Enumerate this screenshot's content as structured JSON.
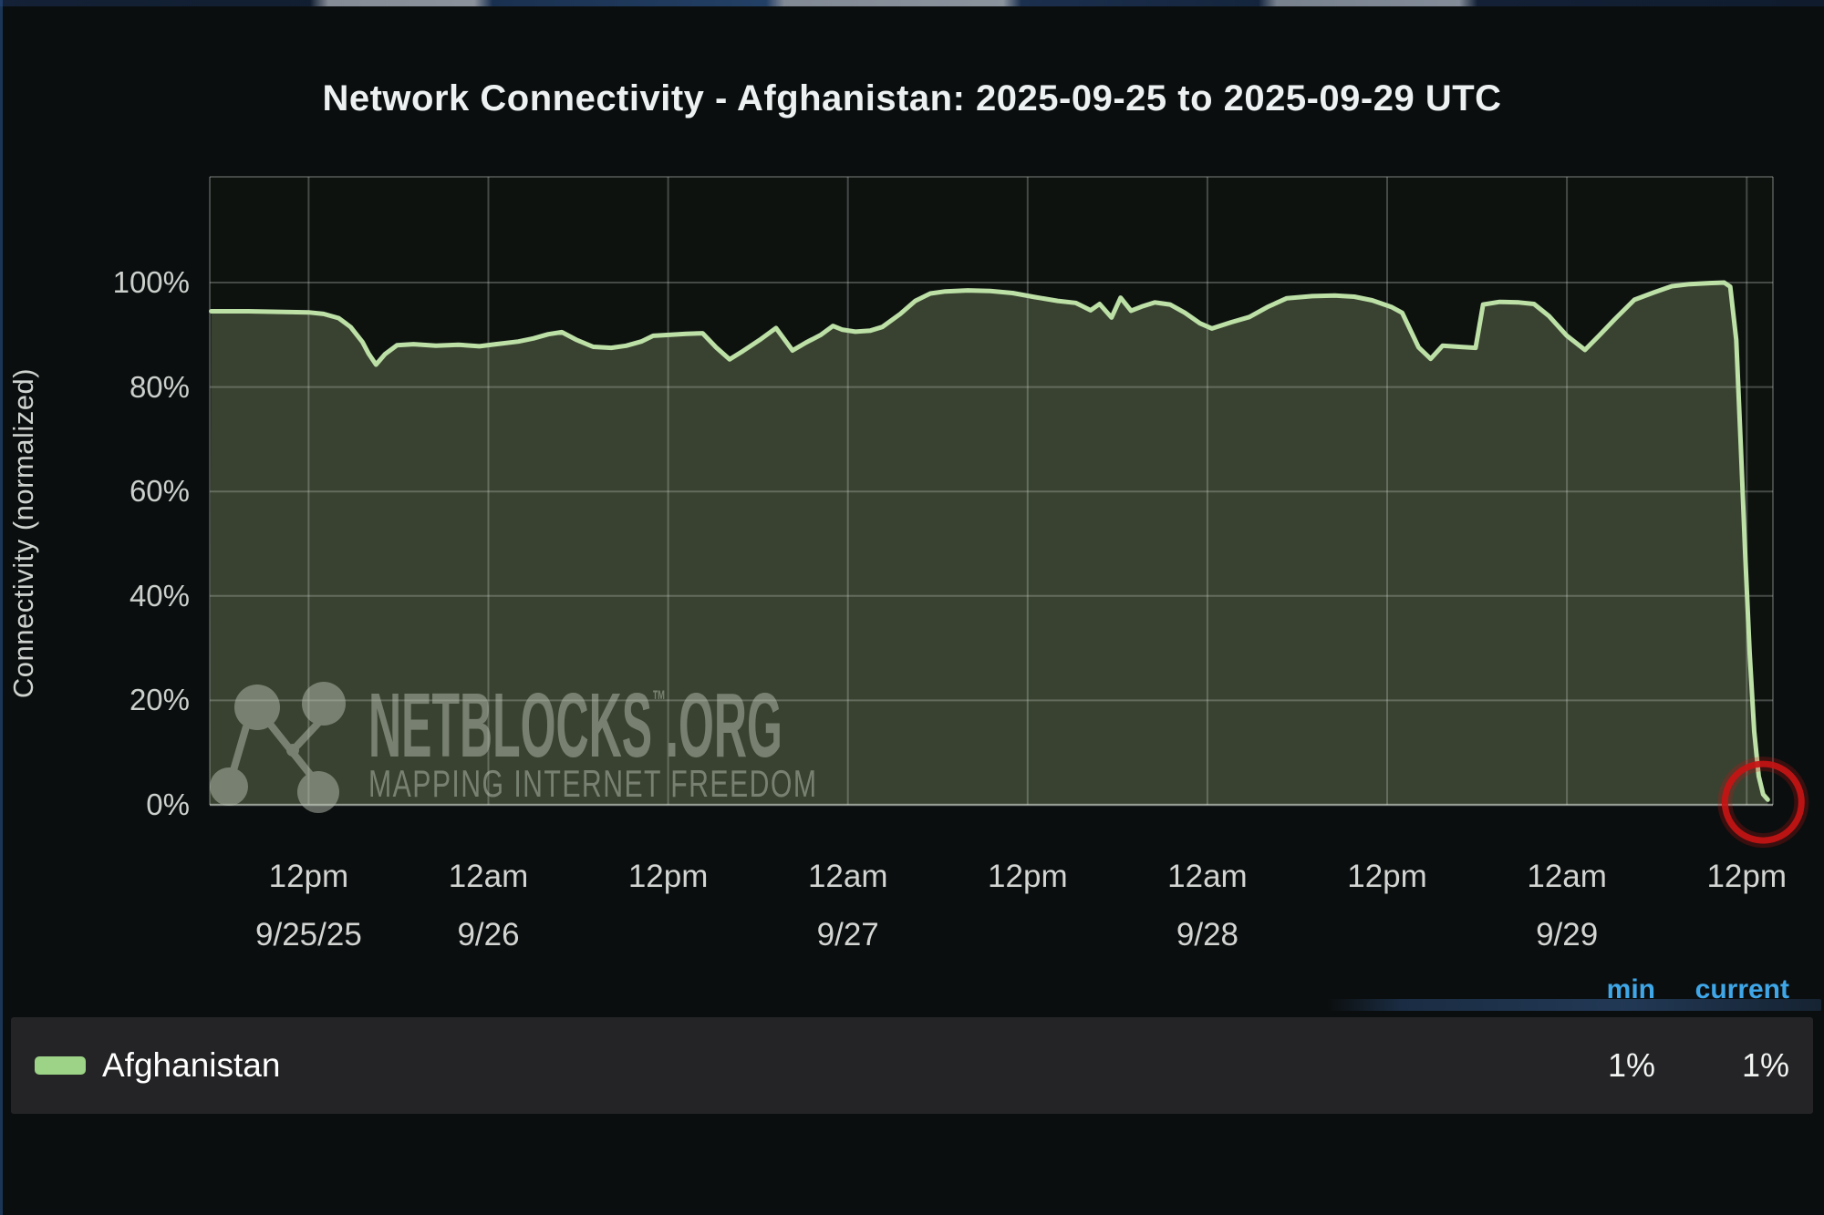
{
  "page": {
    "title": "Network Connectivity - Afghanistan: 2025-09-25 to 2025-09-29 UTC"
  },
  "chart_data": {
    "type": "area",
    "title": "Network Connectivity - Afghanistan: 2025-09-25 to 2025-09-29 UTC",
    "xlabel": "",
    "ylabel": "Connectivity (normalized)",
    "x_unit": "hours since 2025-09-25 00:00 UTC",
    "x_range": [
      5.4,
      109.75
    ],
    "ylim": [
      0,
      120
    ],
    "grid": true,
    "legend_position": "bottom",
    "y_ticks": [
      {
        "v": 0,
        "label": "0%"
      },
      {
        "v": 20,
        "label": "20%"
      },
      {
        "v": 40,
        "label": "40%"
      },
      {
        "v": 60,
        "label": "60%"
      },
      {
        "v": 80,
        "label": "80%"
      },
      {
        "v": 100,
        "label": "100%"
      }
    ],
    "x_ticks": [
      {
        "t": 12,
        "label": "12pm",
        "date": "9/25/25"
      },
      {
        "t": 24,
        "label": "12am",
        "date": "9/26"
      },
      {
        "t": 36,
        "label": "12pm"
      },
      {
        "t": 48,
        "label": "12am",
        "date": "9/27"
      },
      {
        "t": 60,
        "label": "12pm"
      },
      {
        "t": 72,
        "label": "12am",
        "date": "9/28"
      },
      {
        "t": 84,
        "label": "12pm"
      },
      {
        "t": 96,
        "label": "12am",
        "date": "9/29"
      },
      {
        "t": 108,
        "label": "12pm"
      }
    ],
    "series": [
      {
        "name": "Afghanistan",
        "color": "#bce0a6",
        "fill_color": "#394230",
        "min": "1%",
        "current": "1%",
        "points": [
          [
            5.5,
            94.5
          ],
          [
            8,
            94.5
          ],
          [
            10,
            94.4
          ],
          [
            12,
            94.3
          ],
          [
            13,
            94.0
          ],
          [
            14,
            93.2
          ],
          [
            14.8,
            91.5
          ],
          [
            15.6,
            88.6
          ],
          [
            16.0,
            86.4
          ],
          [
            16.5,
            84.3
          ],
          [
            17.1,
            86.3
          ],
          [
            17.9,
            88.0
          ],
          [
            19,
            88.2
          ],
          [
            20.5,
            87.9
          ],
          [
            22,
            88.1
          ],
          [
            23.4,
            87.8
          ],
          [
            24.5,
            88.2
          ],
          [
            26,
            88.7
          ],
          [
            27,
            89.3
          ],
          [
            28,
            90.1
          ],
          [
            28.9,
            90.5
          ],
          [
            29.9,
            89.0
          ],
          [
            31,
            87.7
          ],
          [
            32.2,
            87.5
          ],
          [
            33.2,
            87.9
          ],
          [
            34.2,
            88.7
          ],
          [
            35,
            89.8
          ],
          [
            36.2,
            90.0
          ],
          [
            37.2,
            90.2
          ],
          [
            38.3,
            90.3
          ],
          [
            39.2,
            87.6
          ],
          [
            40.1,
            85.3
          ],
          [
            41,
            86.9
          ],
          [
            42.2,
            89.2
          ],
          [
            43.2,
            91.3
          ],
          [
            44.3,
            87.0
          ],
          [
            45.2,
            88.5
          ],
          [
            46.2,
            90.0
          ],
          [
            47,
            91.7
          ],
          [
            47.6,
            91.0
          ],
          [
            48.5,
            90.6
          ],
          [
            49.5,
            90.8
          ],
          [
            50.3,
            91.5
          ],
          [
            51.5,
            94.0
          ],
          [
            52.5,
            96.5
          ],
          [
            53.5,
            97.9
          ],
          [
            54.5,
            98.3
          ],
          [
            56,
            98.5
          ],
          [
            57.5,
            98.4
          ],
          [
            59,
            98.0
          ],
          [
            60.5,
            97.2
          ],
          [
            62,
            96.5
          ],
          [
            63.2,
            96.1
          ],
          [
            64.2,
            94.7
          ],
          [
            64.8,
            95.9
          ],
          [
            65.6,
            93.3
          ],
          [
            66.2,
            97.1
          ],
          [
            66.9,
            94.6
          ],
          [
            67.6,
            95.4
          ],
          [
            68.5,
            96.2
          ],
          [
            69.5,
            95.8
          ],
          [
            70.5,
            94.2
          ],
          [
            71.5,
            92.2
          ],
          [
            72.3,
            91.2
          ],
          [
            73.6,
            92.4
          ],
          [
            74.8,
            93.4
          ],
          [
            76,
            95.3
          ],
          [
            77.3,
            97.0
          ],
          [
            79,
            97.4
          ],
          [
            80.5,
            97.5
          ],
          [
            81.8,
            97.3
          ],
          [
            83,
            96.6
          ],
          [
            84.3,
            95.3
          ],
          [
            85,
            94.2
          ],
          [
            86.1,
            87.6
          ],
          [
            86.9,
            85.4
          ],
          [
            87.7,
            87.9
          ],
          [
            88.8,
            87.7
          ],
          [
            89.9,
            87.5
          ],
          [
            90.4,
            95.8
          ],
          [
            91.5,
            96.3
          ],
          [
            92.8,
            96.2
          ],
          [
            93.8,
            95.9
          ],
          [
            94.8,
            93.6
          ],
          [
            96,
            89.8
          ],
          [
            97.2,
            87.1
          ],
          [
            98.2,
            90.0
          ],
          [
            99.2,
            93.0
          ],
          [
            100.5,
            96.7
          ],
          [
            101.8,
            98.1
          ],
          [
            103,
            99.3
          ],
          [
            104.2,
            99.7
          ],
          [
            105.5,
            99.9
          ],
          [
            106.5,
            100.0
          ],
          [
            106.9,
            99.2
          ],
          [
            107.3,
            89
          ],
          [
            107.6,
            69
          ],
          [
            107.9,
            48
          ],
          [
            108.2,
            29
          ],
          [
            108.5,
            14
          ],
          [
            108.8,
            5.5
          ],
          [
            109.1,
            2
          ],
          [
            109.4,
            1
          ]
        ]
      }
    ],
    "annotation": {
      "name": "connectivity-drop-highlight",
      "shape": "circle",
      "t": 109.1,
      "v": 0.5,
      "radius": 42,
      "color": "#c51414"
    }
  },
  "legend": {
    "headers": {
      "min": "min",
      "current": "current"
    },
    "header_color": "#3fa7e8",
    "rows": [
      {
        "label": "Afghanistan",
        "swatch_color": "#9dd386",
        "min": "1%",
        "current": "1%"
      }
    ]
  },
  "watermark": {
    "brand": "NETBLOCKS",
    "tm": "™",
    "suffix": ".ORG",
    "tagline": "MAPPING INTERNET FREEDOM"
  },
  "colors": {
    "background": "#0b0e0e",
    "plot_bg": "#0d120f",
    "grid": "rgba(200,206,200,0.30)",
    "grid_bottom": "rgba(205,212,203,0.5)",
    "line": "#bce0a6",
    "fill": "#394230",
    "legend_header": "#3fa7e8",
    "annotation_red": "#c51414",
    "swatch": "#9dd386",
    "title_text": "#eef1f1",
    "axis_text": "#ccd0cc",
    "watermark": "#b7c0b2"
  }
}
